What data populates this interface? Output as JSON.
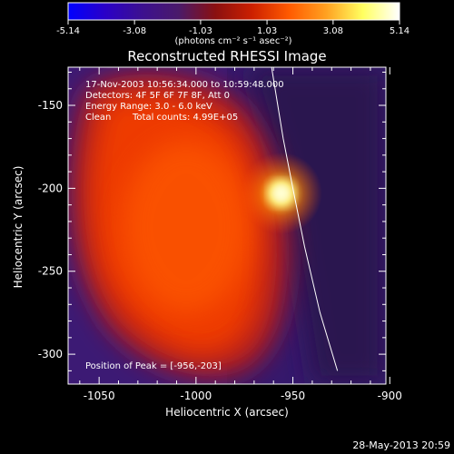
{
  "colorbar": {
    "tick_labels": [
      "-5.14",
      "-3.08",
      "-1.03",
      "1.03",
      "3.08",
      "5.14"
    ],
    "tick_values": [
      -5.14,
      -3.08,
      -1.03,
      1.03,
      3.08,
      5.14
    ],
    "range": [
      -5.14,
      5.14
    ],
    "unit_label": "(photons cm⁻² s⁻¹ asec⁻²)",
    "colors": [
      "#0000ff",
      "#2a00c8",
      "#3c1090",
      "#4a1a6a",
      "#8a1010",
      "#cc2000",
      "#ff5a00",
      "#ffa020",
      "#ffff60",
      "#ffffff"
    ]
  },
  "chart_data": {
    "type": "heatmap",
    "title": "Reconstructed RHESSI Image",
    "xlabel": "Heliocentric X (arcsec)",
    "ylabel": "Heliocentric Y (arcsec)",
    "xlim": [
      -1066,
      -902
    ],
    "ylim": [
      -318,
      -127
    ],
    "x_ticks": [
      -1050,
      -1000,
      -950,
      -900
    ],
    "x_tick_labels": [
      "-1050",
      "-1000",
      "-950",
      "-900"
    ],
    "y_ticks": [
      -150,
      -200,
      -250,
      -300
    ],
    "y_tick_labels": [
      "-150",
      "-200",
      "-250",
      "-300"
    ],
    "peak": {
      "x": -956,
      "y": -203
    },
    "limb_line": [
      [
        -961,
        -127
      ],
      [
        -955,
        -170
      ],
      [
        -950,
        -200
      ],
      [
        -944,
        -235
      ],
      [
        -936,
        -275
      ],
      [
        -927,
        -310
      ]
    ],
    "annotations": {
      "time_range": "17-Nov-2003 10:56:34.000 to 10:59:48.000",
      "detectors": "Detectors: 4F 5F 6F 7F 8F, Att 0",
      "energy_range": "Energy Range: 3.0 - 6.0 keV",
      "clean_label": "Clean",
      "total_counts": "Total counts: 4.99E+05",
      "peak_position": "Position of Peak = [-956,-203]"
    }
  },
  "footer": {
    "timestamp": "28-May-2013 20:59"
  }
}
